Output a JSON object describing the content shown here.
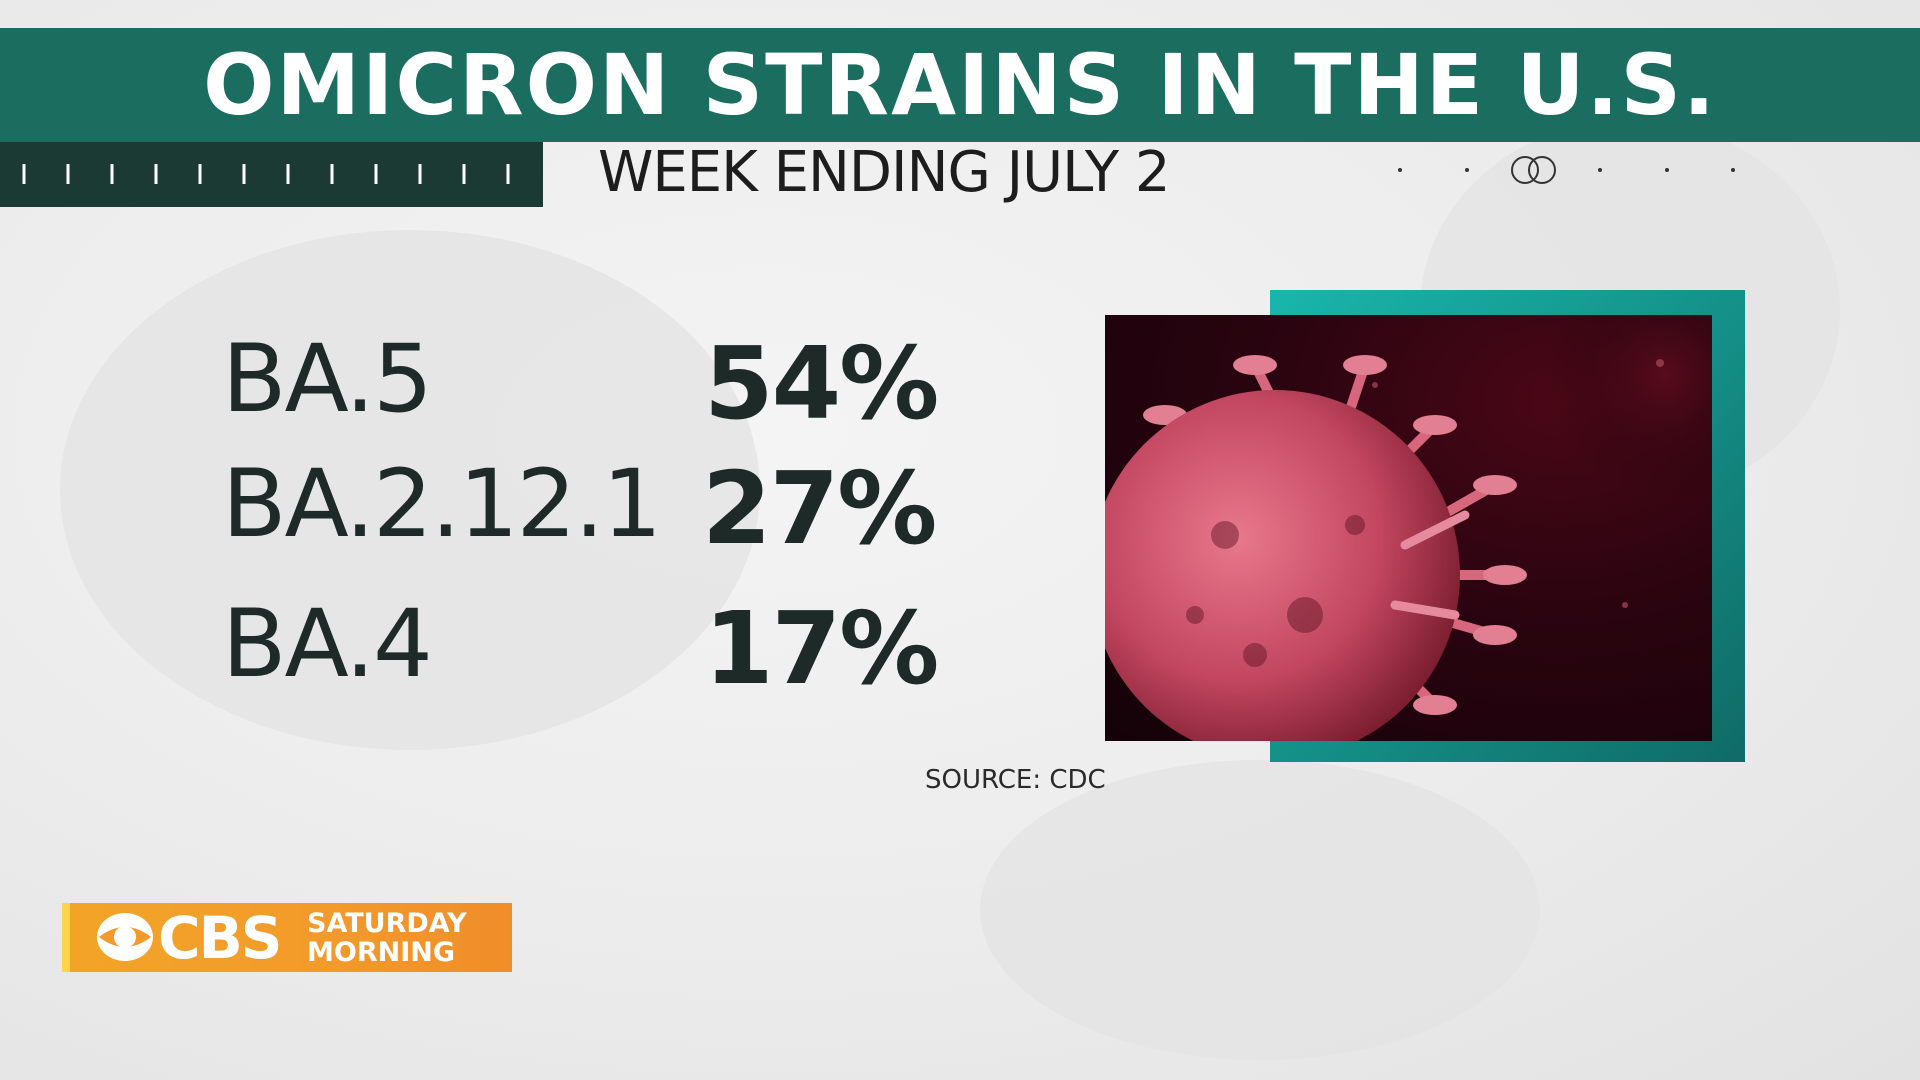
{
  "title": "OMICRON STRAINS IN THE U.S.",
  "subtitle": "WEEK ENDING JULY 2",
  "strains": [
    {
      "name": "BA.5",
      "percent": "54%"
    },
    {
      "name": "BA.2.12.1",
      "percent": "27%"
    },
    {
      "name": "BA.4",
      "percent": "17%"
    }
  ],
  "source": "SOURCE: CDC",
  "logo": {
    "mark": "CBS",
    "line1": "SATURDAY",
    "line2": "MORNING"
  },
  "image": {
    "subject": "coronavirus-illustration"
  },
  "colors": {
    "banner": "#1b6e5f",
    "tick_bar": "#1a3a33",
    "frame": "#19b6ac",
    "logo": "#f39a2a",
    "text": "#1d2a27"
  }
}
